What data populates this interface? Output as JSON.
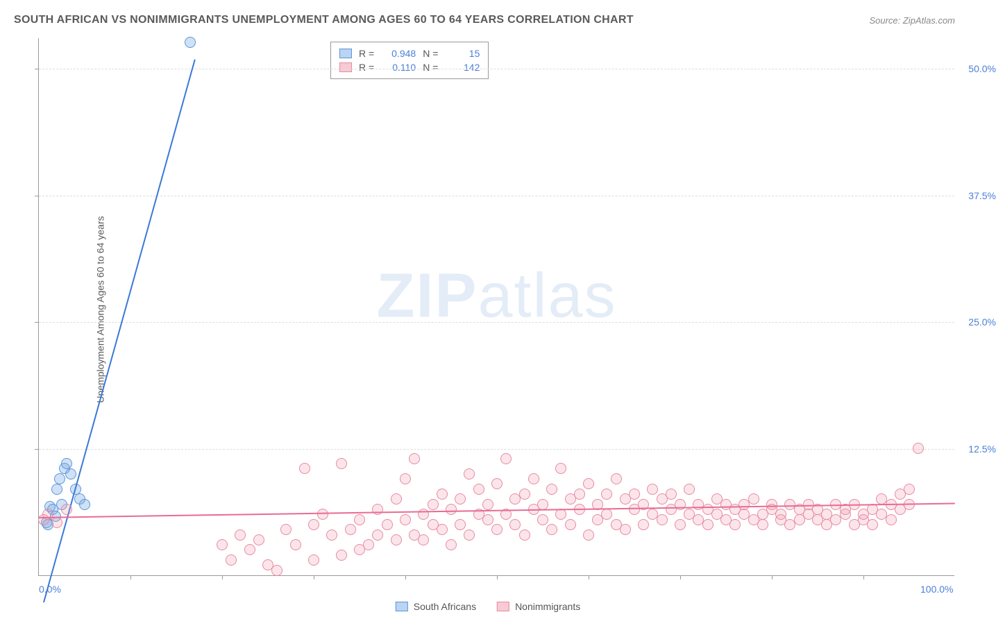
{
  "title": "SOUTH AFRICAN VS NONIMMIGRANTS UNEMPLOYMENT AMONG AGES 60 TO 64 YEARS CORRELATION CHART",
  "source": "Source: ZipAtlas.com",
  "ylabel": "Unemployment Among Ages 60 to 64 years",
  "watermark_a": "ZIP",
  "watermark_b": "atlas",
  "chart": {
    "type": "scatter",
    "xlim": [
      0,
      100
    ],
    "ylim": [
      0,
      53
    ],
    "xticks": [
      0,
      100
    ],
    "xtick_labels": [
      "0.0%",
      "100.0%"
    ],
    "xtick_minor": [
      10,
      20,
      30,
      40,
      50,
      60,
      70,
      80,
      90
    ],
    "yticks": [
      12.5,
      25.0,
      37.5,
      50.0
    ],
    "ytick_labels": [
      "12.5%",
      "25.0%",
      "37.5%",
      "50.0%"
    ],
    "grid_color": "#dddddd",
    "axis_color": "#999999",
    "background_color": "#ffffff",
    "xlabel_color": "#4a7fd8",
    "ylabel_color": "#4a7fd8",
    "marker_radius": 8
  },
  "series": [
    {
      "name": "South Africans",
      "color_fill": "rgba(120,170,230,0.35)",
      "color_stroke": "#5a95d8",
      "trend_color": "#3a78d8",
      "R": "0.948",
      "N": "15",
      "trend": {
        "x1": 0.5,
        "y1": -2.5,
        "x2": 17,
        "y2": 51
      },
      "points": [
        [
          0.8,
          5.2
        ],
        [
          1.0,
          5.0
        ],
        [
          1.2,
          6.8
        ],
        [
          1.5,
          6.5
        ],
        [
          1.8,
          5.8
        ],
        [
          2.0,
          8.5
        ],
        [
          2.3,
          9.5
        ],
        [
          2.5,
          7.0
        ],
        [
          2.8,
          10.5
        ],
        [
          3.0,
          11.0
        ],
        [
          3.5,
          10.0
        ],
        [
          4.0,
          8.5
        ],
        [
          4.5,
          7.5
        ],
        [
          5.0,
          7.0
        ],
        [
          16.5,
          52.5
        ]
      ]
    },
    {
      "name": "Nonimmigrants",
      "color_fill": "rgba(240,150,170,0.25)",
      "color_stroke": "#e78aa0",
      "trend_color": "#e86b94",
      "R": "0.110",
      "N": "142",
      "trend": {
        "x1": 0,
        "y1": 5.8,
        "x2": 100,
        "y2": 7.2
      },
      "points": [
        [
          0.5,
          5.5
        ],
        [
          1,
          6.0
        ],
        [
          2,
          5.2
        ],
        [
          3,
          6.5
        ],
        [
          20,
          3.0
        ],
        [
          21,
          1.5
        ],
        [
          22,
          4.0
        ],
        [
          23,
          2.5
        ],
        [
          24,
          3.5
        ],
        [
          25,
          1.0
        ],
        [
          26,
          0.5
        ],
        [
          27,
          4.5
        ],
        [
          28,
          3.0
        ],
        [
          29,
          10.5
        ],
        [
          30,
          5.0
        ],
        [
          30,
          1.5
        ],
        [
          31,
          6.0
        ],
        [
          32,
          4.0
        ],
        [
          33,
          2.0
        ],
        [
          33,
          11.0
        ],
        [
          34,
          4.5
        ],
        [
          35,
          5.5
        ],
        [
          35,
          2.5
        ],
        [
          36,
          3.0
        ],
        [
          37,
          6.5
        ],
        [
          37,
          4.0
        ],
        [
          38,
          5.0
        ],
        [
          39,
          3.5
        ],
        [
          39,
          7.5
        ],
        [
          40,
          9.5
        ],
        [
          40,
          5.5
        ],
        [
          41,
          4.0
        ],
        [
          41,
          11.5
        ],
        [
          42,
          6.0
        ],
        [
          42,
          3.5
        ],
        [
          43,
          7.0
        ],
        [
          43,
          5.0
        ],
        [
          44,
          4.5
        ],
        [
          44,
          8.0
        ],
        [
          45,
          6.5
        ],
        [
          45,
          3.0
        ],
        [
          46,
          7.5
        ],
        [
          46,
          5.0
        ],
        [
          47,
          4.0
        ],
        [
          47,
          10.0
        ],
        [
          48,
          6.0
        ],
        [
          48,
          8.5
        ],
        [
          49,
          5.5
        ],
        [
          49,
          7.0
        ],
        [
          50,
          4.5
        ],
        [
          50,
          9.0
        ],
        [
          51,
          11.5
        ],
        [
          51,
          6.0
        ],
        [
          52,
          5.0
        ],
        [
          52,
          7.5
        ],
        [
          53,
          8.0
        ],
        [
          53,
          4.0
        ],
        [
          54,
          6.5
        ],
        [
          54,
          9.5
        ],
        [
          55,
          5.5
        ],
        [
          55,
          7.0
        ],
        [
          56,
          8.5
        ],
        [
          56,
          4.5
        ],
        [
          57,
          10.5
        ],
        [
          57,
          6.0
        ],
        [
          58,
          7.5
        ],
        [
          58,
          5.0
        ],
        [
          59,
          8.0
        ],
        [
          59,
          6.5
        ],
        [
          60,
          9.0
        ],
        [
          60,
          4.0
        ],
        [
          61,
          7.0
        ],
        [
          61,
          5.5
        ],
        [
          62,
          8.0
        ],
        [
          62,
          6.0
        ],
        [
          63,
          5.0
        ],
        [
          63,
          9.5
        ],
        [
          64,
          7.5
        ],
        [
          64,
          4.5
        ],
        [
          65,
          6.5
        ],
        [
          65,
          8.0
        ],
        [
          66,
          5.0
        ],
        [
          66,
          7.0
        ],
        [
          67,
          8.5
        ],
        [
          67,
          6.0
        ],
        [
          68,
          5.5
        ],
        [
          68,
          7.5
        ],
        [
          69,
          6.5
        ],
        [
          69,
          8.0
        ],
        [
          70,
          5.0
        ],
        [
          70,
          7.0
        ],
        [
          71,
          6.0
        ],
        [
          71,
          8.5
        ],
        [
          72,
          5.5
        ],
        [
          72,
          7.0
        ],
        [
          73,
          6.5
        ],
        [
          73,
          5.0
        ],
        [
          74,
          7.5
        ],
        [
          74,
          6.0
        ],
        [
          75,
          5.5
        ],
        [
          75,
          7.0
        ],
        [
          76,
          6.5
        ],
        [
          76,
          5.0
        ],
        [
          77,
          7.0
        ],
        [
          77,
          6.0
        ],
        [
          78,
          5.5
        ],
        [
          78,
          7.5
        ],
        [
          79,
          6.0
        ],
        [
          79,
          5.0
        ],
        [
          80,
          6.5
        ],
        [
          80,
          7.0
        ],
        [
          81,
          5.5
        ],
        [
          81,
          6.0
        ],
        [
          82,
          7.0
        ],
        [
          82,
          5.0
        ],
        [
          83,
          6.5
        ],
        [
          83,
          5.5
        ],
        [
          84,
          6.0
        ],
        [
          84,
          7.0
        ],
        [
          85,
          5.5
        ],
        [
          85,
          6.5
        ],
        [
          86,
          5.0
        ],
        [
          86,
          6.0
        ],
        [
          87,
          7.0
        ],
        [
          87,
          5.5
        ],
        [
          88,
          6.0
        ],
        [
          88,
          6.5
        ],
        [
          89,
          5.0
        ],
        [
          89,
          7.0
        ],
        [
          90,
          5.5
        ],
        [
          90,
          6.0
        ],
        [
          91,
          6.5
        ],
        [
          91,
          5.0
        ],
        [
          92,
          7.5
        ],
        [
          92,
          6.0
        ],
        [
          93,
          5.5
        ],
        [
          93,
          7.0
        ],
        [
          94,
          6.5
        ],
        [
          94,
          8.0
        ],
        [
          95,
          7.0
        ],
        [
          95,
          8.5
        ],
        [
          96,
          12.5
        ]
      ]
    }
  ],
  "legend_bottom": {
    "items": [
      "South Africans",
      "Nonimmigrants"
    ]
  },
  "legend_top": {
    "r_label": "R =",
    "n_label": "N ="
  }
}
